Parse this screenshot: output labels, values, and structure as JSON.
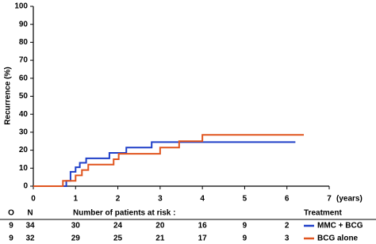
{
  "chart_data": {
    "type": "step",
    "ylabel": "Recurrence (%)",
    "xlabel": "(years)",
    "xlim": [
      0,
      7
    ],
    "xticks": [
      0,
      1,
      2,
      3,
      4,
      5,
      6,
      7
    ],
    "ylim": [
      0,
      100
    ],
    "yticks": [
      0,
      10,
      20,
      30,
      40,
      50,
      60,
      70,
      80,
      90,
      100
    ],
    "legend_title": "Treatment",
    "risk_title": "Number of patients at risk :",
    "risk_columns": [
      "O",
      "N"
    ],
    "risk_x": [
      1,
      2,
      3,
      4,
      5,
      6
    ],
    "series": [
      {
        "name": "MMC + BCG",
        "color": "#1f3fc8",
        "x": [
          0,
          0.78,
          0.88,
          1.0,
          1.1,
          1.25,
          1.8,
          2.2,
          2.8,
          6.2
        ],
        "values": [
          0,
          3,
          8,
          10.5,
          13,
          15.5,
          18.5,
          21.5,
          24.5,
          24.5
        ],
        "O": 9,
        "N": 34,
        "at_risk": [
          30,
          24,
          20,
          16,
          9,
          2
        ]
      },
      {
        "name": "BCG alone",
        "color": "#e0551f",
        "x": [
          0,
          0.7,
          1.0,
          1.15,
          1.3,
          1.9,
          2.02,
          3.0,
          3.45,
          4.0,
          6.4
        ],
        "values": [
          0,
          3,
          6,
          9,
          12,
          15,
          18,
          21.5,
          25,
          28.5,
          28.5
        ],
        "O": 9,
        "N": 32,
        "at_risk": [
          29,
          25,
          21,
          17,
          9,
          3
        ]
      }
    ]
  }
}
